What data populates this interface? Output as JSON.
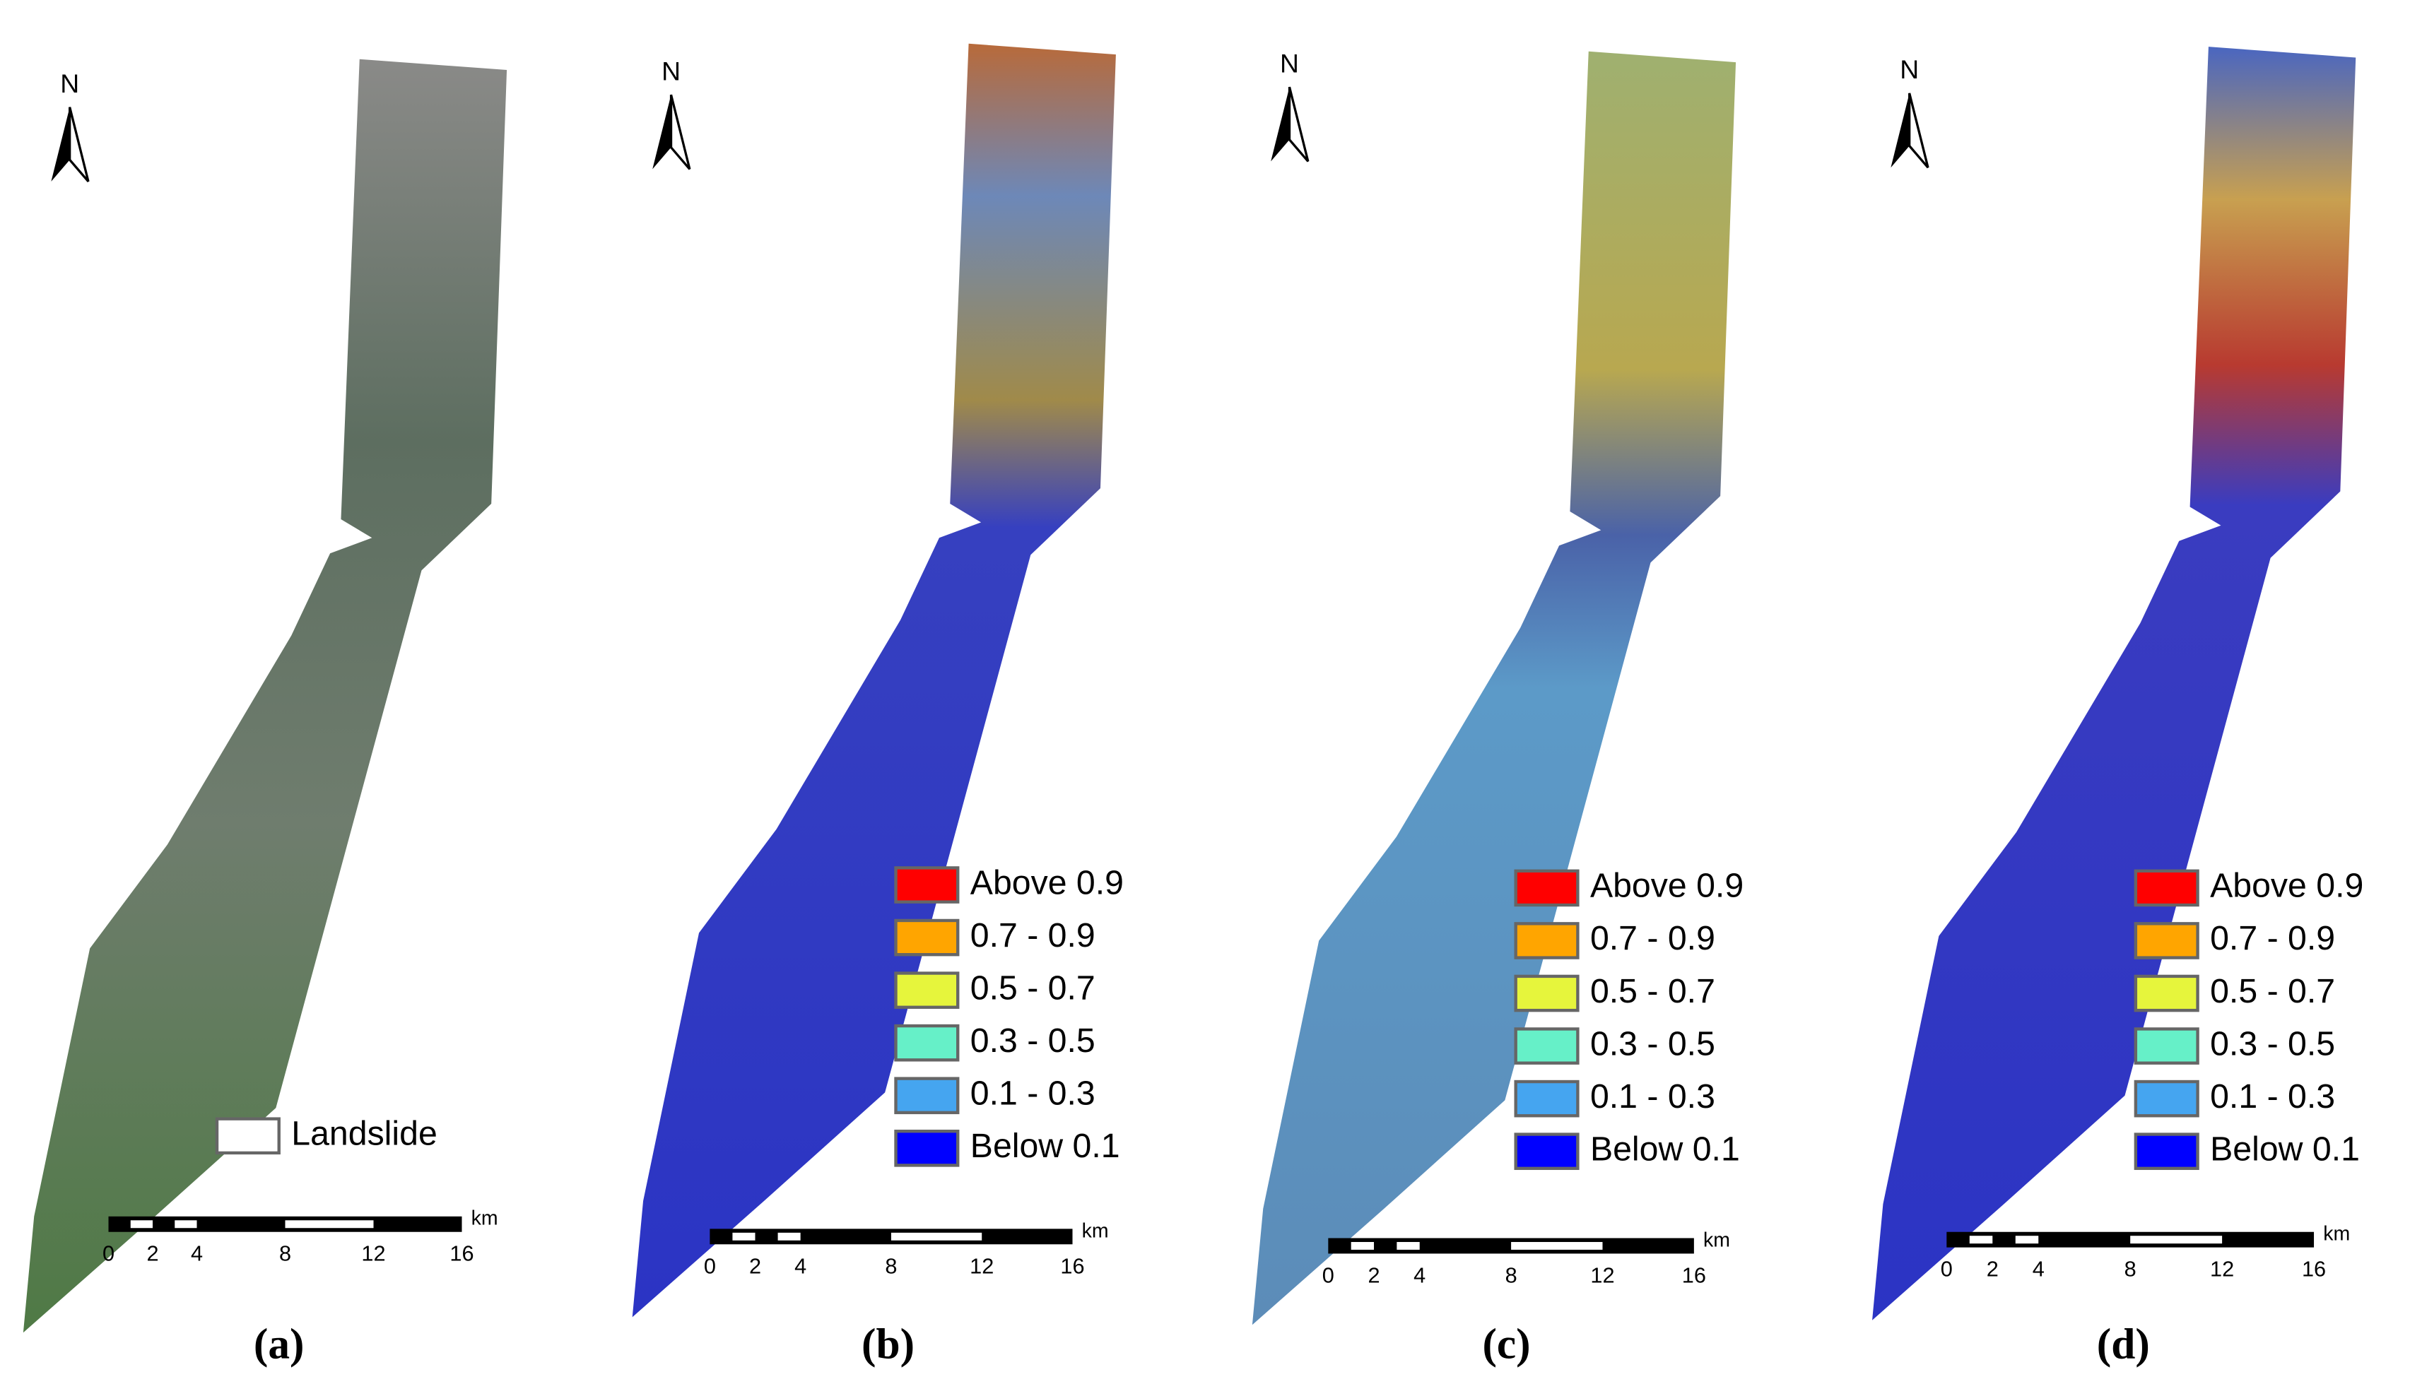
{
  "panels": [
    {
      "label": "(a)",
      "north": "N",
      "fill": "sat",
      "legend": [
        {
          "label": "Landslide",
          "color": "#ffffff"
        }
      ],
      "scale_bar": {
        "ticks": [
          0,
          2,
          4,
          8,
          12,
          16
        ],
        "unit": "km"
      }
    },
    {
      "label": "(b)",
      "north": "N",
      "fill": "b",
      "legend": [
        {
          "label": "Above 0.9",
          "color": "#ff0000"
        },
        {
          "label": "0.7 - 0.9",
          "color": "#ffa500"
        },
        {
          "label": "0.5 - 0.7",
          "color": "#e6f53c"
        },
        {
          "label": "0.3 - 0.5",
          "color": "#66f0c8"
        },
        {
          "label": "0.1 - 0.3",
          "color": "#45a5f0"
        },
        {
          "label": "Below 0.1",
          "color": "#0000ff"
        }
      ],
      "scale_bar": {
        "ticks": [
          0,
          2,
          4,
          8,
          12,
          16
        ],
        "unit": "km"
      }
    },
    {
      "label": "(c)",
      "north": "N",
      "fill": "c",
      "legend": [
        {
          "label": "Above 0.9",
          "color": "#ff0000"
        },
        {
          "label": "0.7 - 0.9",
          "color": "#ffa500"
        },
        {
          "label": "0.5 - 0.7",
          "color": "#e6f53c"
        },
        {
          "label": "0.3 - 0.5",
          "color": "#66f0c8"
        },
        {
          "label": "0.1 - 0.3",
          "color": "#45a5f0"
        },
        {
          "label": "Below 0.1",
          "color": "#0000ff"
        }
      ],
      "scale_bar": {
        "ticks": [
          0,
          2,
          4,
          8,
          12,
          16
        ],
        "unit": "km"
      }
    },
    {
      "label": "(d)",
      "north": "N",
      "fill": "d",
      "legend": [
        {
          "label": "Above 0.9",
          "color": "#ff0000"
        },
        {
          "label": "0.7 - 0.9",
          "color": "#ffa500"
        },
        {
          "label": "0.5 - 0.7",
          "color": "#e6f53c"
        },
        {
          "label": "0.3 - 0.5",
          "color": "#66f0c8"
        },
        {
          "label": "0.1 - 0.3",
          "color": "#45a5f0"
        },
        {
          "label": "Below 0.1",
          "color": "#0000ff"
        }
      ],
      "scale_bar": {
        "ticks": [
          0,
          2,
          4,
          8,
          12,
          16
        ],
        "unit": "km"
      }
    }
  ]
}
